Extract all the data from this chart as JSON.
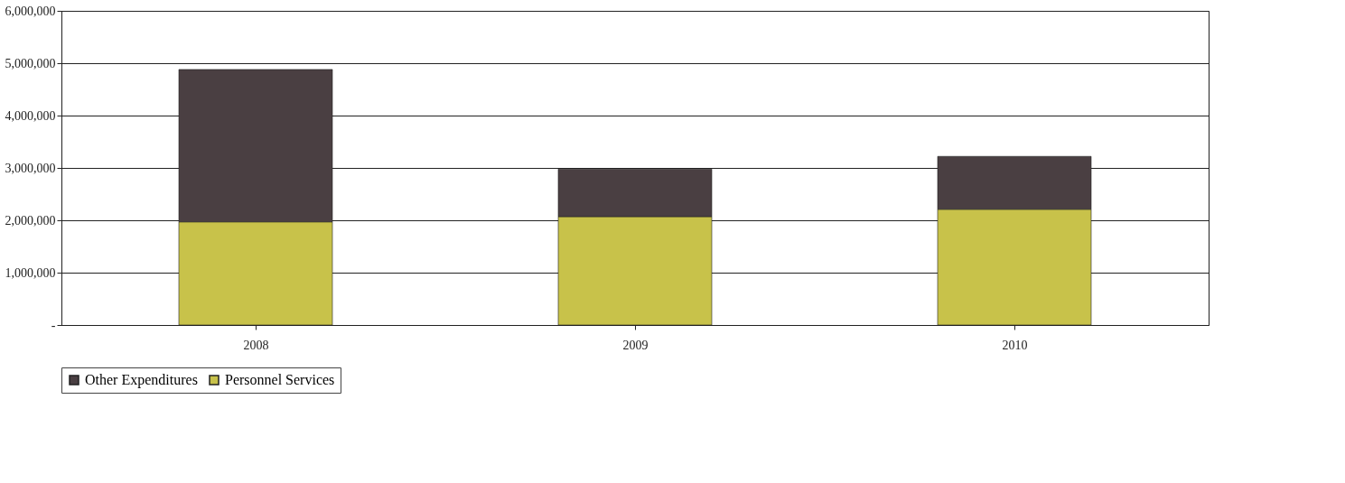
{
  "chart_data": {
    "type": "bar",
    "stacked": true,
    "categories": [
      "2008",
      "2009",
      "2010"
    ],
    "series": [
      {
        "name": "Personnel Services",
        "color": "#c8c24a",
        "values": [
          1970000,
          2070000,
          2210000
        ]
      },
      {
        "name": "Other Expenditures",
        "color": "#4a3f42",
        "values": [
          2910000,
          910000,
          1010000
        ]
      }
    ],
    "ylim": [
      0,
      6000000
    ],
    "yticks": [
      {
        "value": 0,
        "label": "-"
      },
      {
        "value": 1000000,
        "label": "1,000,000"
      },
      {
        "value": 2000000,
        "label": "2,000,000"
      },
      {
        "value": 3000000,
        "label": "3,000,000"
      },
      {
        "value": 4000000,
        "label": "4,000,000"
      },
      {
        "value": 5000000,
        "label": "5,000,000"
      },
      {
        "value": 6000000,
        "label": "6,000,000"
      }
    ],
    "grid": "y",
    "legend": "bottom"
  }
}
